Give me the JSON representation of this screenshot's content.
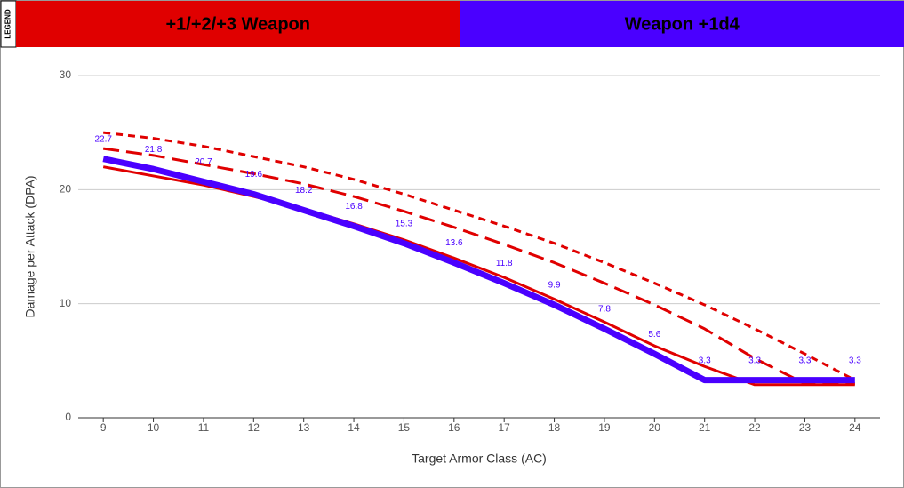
{
  "chart_data": {
    "type": "line",
    "legend_title": "LEGEND",
    "legend": [
      {
        "label": "+1/+2/+3 Weapon",
        "color": "#e00000"
      },
      {
        "label": "Weapon +1d4",
        "color": "#4a00ff"
      }
    ],
    "x_label": "Target Armor Class (AC)",
    "y_label": "Damage per Attack (DPA)",
    "x": [
      9,
      10,
      11,
      12,
      13,
      14,
      15,
      16,
      17,
      18,
      19,
      20,
      21,
      22,
      23,
      24
    ],
    "xlim": [
      8.5,
      24.5
    ],
    "xticks": [
      9,
      10,
      11,
      12,
      13,
      14,
      15,
      16,
      17,
      18,
      19,
      20,
      21,
      22,
      23,
      24
    ],
    "ylim": [
      0,
      30
    ],
    "yticks": [
      0,
      10,
      20,
      30
    ],
    "grid": true,
    "series": [
      {
        "color": "#e00000",
        "dash": "none",
        "width": 3,
        "values": [
          22.0,
          21.2,
          20.4,
          19.4,
          18.3,
          17.0,
          15.6,
          14.0,
          12.3,
          10.4,
          8.4,
          6.3,
          4.5,
          2.9,
          2.9,
          2.9
        ]
      },
      {
        "color": "#e00000",
        "dash": "18,8",
        "width": 3,
        "values": [
          23.6,
          23.0,
          22.2,
          21.4,
          20.5,
          19.4,
          18.1,
          16.7,
          15.2,
          13.6,
          11.8,
          9.9,
          7.8,
          5.2,
          3.0,
          3.0
        ]
      },
      {
        "color": "#e00000",
        "dash": "8,6",
        "width": 3,
        "values": [
          25.0,
          24.5,
          23.8,
          22.9,
          22.0,
          20.9,
          19.6,
          18.2,
          16.8,
          15.3,
          13.6,
          11.8,
          9.9,
          7.8,
          5.6,
          3.3
        ]
      },
      {
        "color": "#4a00ff",
        "dash": "none",
        "width": 7,
        "labels": true,
        "values": [
          22.7,
          21.8,
          20.7,
          19.6,
          18.2,
          16.8,
          15.3,
          13.6,
          11.8,
          9.9,
          7.8,
          5.6,
          3.3,
          3.3,
          3.3,
          3.3
        ]
      }
    ]
  }
}
